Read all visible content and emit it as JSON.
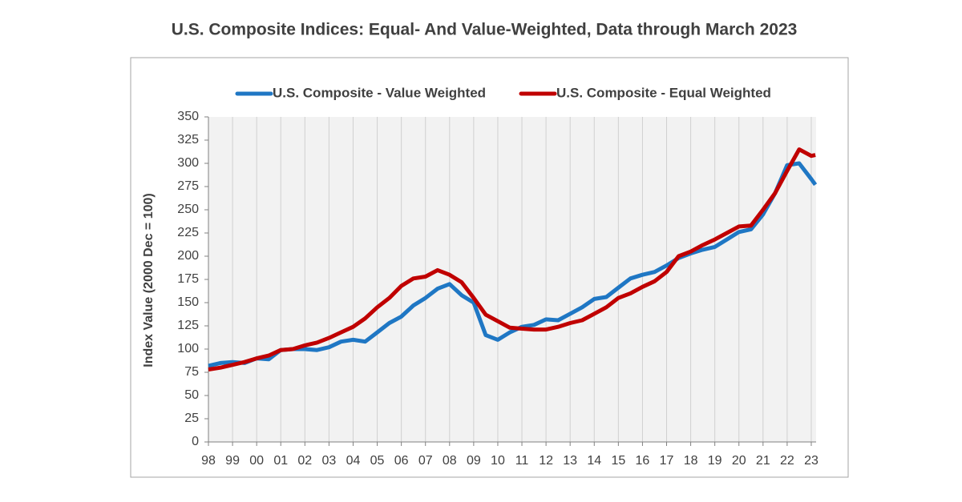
{
  "chart_data": {
    "type": "line",
    "title": "U.S. Composite Indices: Equal- And Value-Weighted, Data through March 2023",
    "y_label": "Index Value (2000 Dec = 100)",
    "x": [
      1998.0,
      1998.5,
      1999.0,
      1999.5,
      2000.0,
      2000.5,
      2001.0,
      2001.5,
      2002.0,
      2002.5,
      2003.0,
      2003.5,
      2004.0,
      2004.5,
      2005.0,
      2005.5,
      2006.0,
      2006.5,
      2007.0,
      2007.5,
      2008.0,
      2008.5,
      2009.0,
      2009.5,
      2010.0,
      2010.5,
      2011.0,
      2011.5,
      2012.0,
      2012.5,
      2013.0,
      2013.5,
      2014.0,
      2014.5,
      2015.0,
      2015.5,
      2016.0,
      2016.5,
      2017.0,
      2017.5,
      2018.0,
      2018.5,
      2019.0,
      2019.5,
      2020.0,
      2020.5,
      2021.0,
      2021.5,
      2022.0,
      2022.5,
      2023.0,
      2023.17
    ],
    "series": [
      {
        "name": "U.S. Composite - Value Weighted",
        "color": "#1f77c4",
        "values": [
          82,
          85,
          86,
          85,
          90,
          89,
          99,
          100,
          100,
          99,
          102,
          108,
          110,
          108,
          118,
          128,
          135,
          147,
          155,
          165,
          170,
          158,
          150,
          115,
          110,
          118,
          124,
          126,
          132,
          131,
          138,
          145,
          154,
          156,
          166,
          176,
          180,
          183,
          190,
          198,
          203,
          207,
          210,
          218,
          226,
          229,
          245,
          268,
          298,
          300,
          283,
          277
        ]
      },
      {
        "name": "U.S. Composite - Equal Weighted",
        "color": "#c00000",
        "values": [
          78,
          80,
          83,
          86,
          90,
          93,
          99,
          100,
          104,
          107,
          112,
          118,
          124,
          133,
          145,
          155,
          168,
          176,
          178,
          185,
          180,
          172,
          155,
          137,
          130,
          123,
          122,
          121,
          121,
          124,
          128,
          131,
          138,
          145,
          155,
          160,
          167,
          173,
          183,
          200,
          205,
          212,
          218,
          225,
          232,
          233,
          250,
          268,
          292,
          315,
          308,
          309
        ]
      }
    ],
    "xlim": [
      1998,
      2023.2
    ],
    "xticks": [
      {
        "value": 1998,
        "label": "98"
      },
      {
        "value": 1999,
        "label": "99"
      },
      {
        "value": 2000,
        "label": "00"
      },
      {
        "value": 2001,
        "label": "01"
      },
      {
        "value": 2002,
        "label": "02"
      },
      {
        "value": 2003,
        "label": "03"
      },
      {
        "value": 2004,
        "label": "04"
      },
      {
        "value": 2005,
        "label": "05"
      },
      {
        "value": 2006,
        "label": "06"
      },
      {
        "value": 2007,
        "label": "07"
      },
      {
        "value": 2008,
        "label": "08"
      },
      {
        "value": 2009,
        "label": "09"
      },
      {
        "value": 2010,
        "label": "10"
      },
      {
        "value": 2011,
        "label": "11"
      },
      {
        "value": 2012,
        "label": "12"
      },
      {
        "value": 2013,
        "label": "13"
      },
      {
        "value": 2014,
        "label": "14"
      },
      {
        "value": 2015,
        "label": "15"
      },
      {
        "value": 2016,
        "label": "16"
      },
      {
        "value": 2017,
        "label": "17"
      },
      {
        "value": 2018,
        "label": "18"
      },
      {
        "value": 2019,
        "label": "19"
      },
      {
        "value": 2020,
        "label": "20"
      },
      {
        "value": 2021,
        "label": "21"
      },
      {
        "value": 2022,
        "label": "22"
      },
      {
        "value": 2023,
        "label": "23"
      }
    ],
    "ylim": [
      0,
      350
    ],
    "yticks": [
      0,
      25,
      50,
      75,
      100,
      125,
      150,
      175,
      200,
      225,
      250,
      275,
      300,
      325,
      350
    ],
    "grid": true
  }
}
